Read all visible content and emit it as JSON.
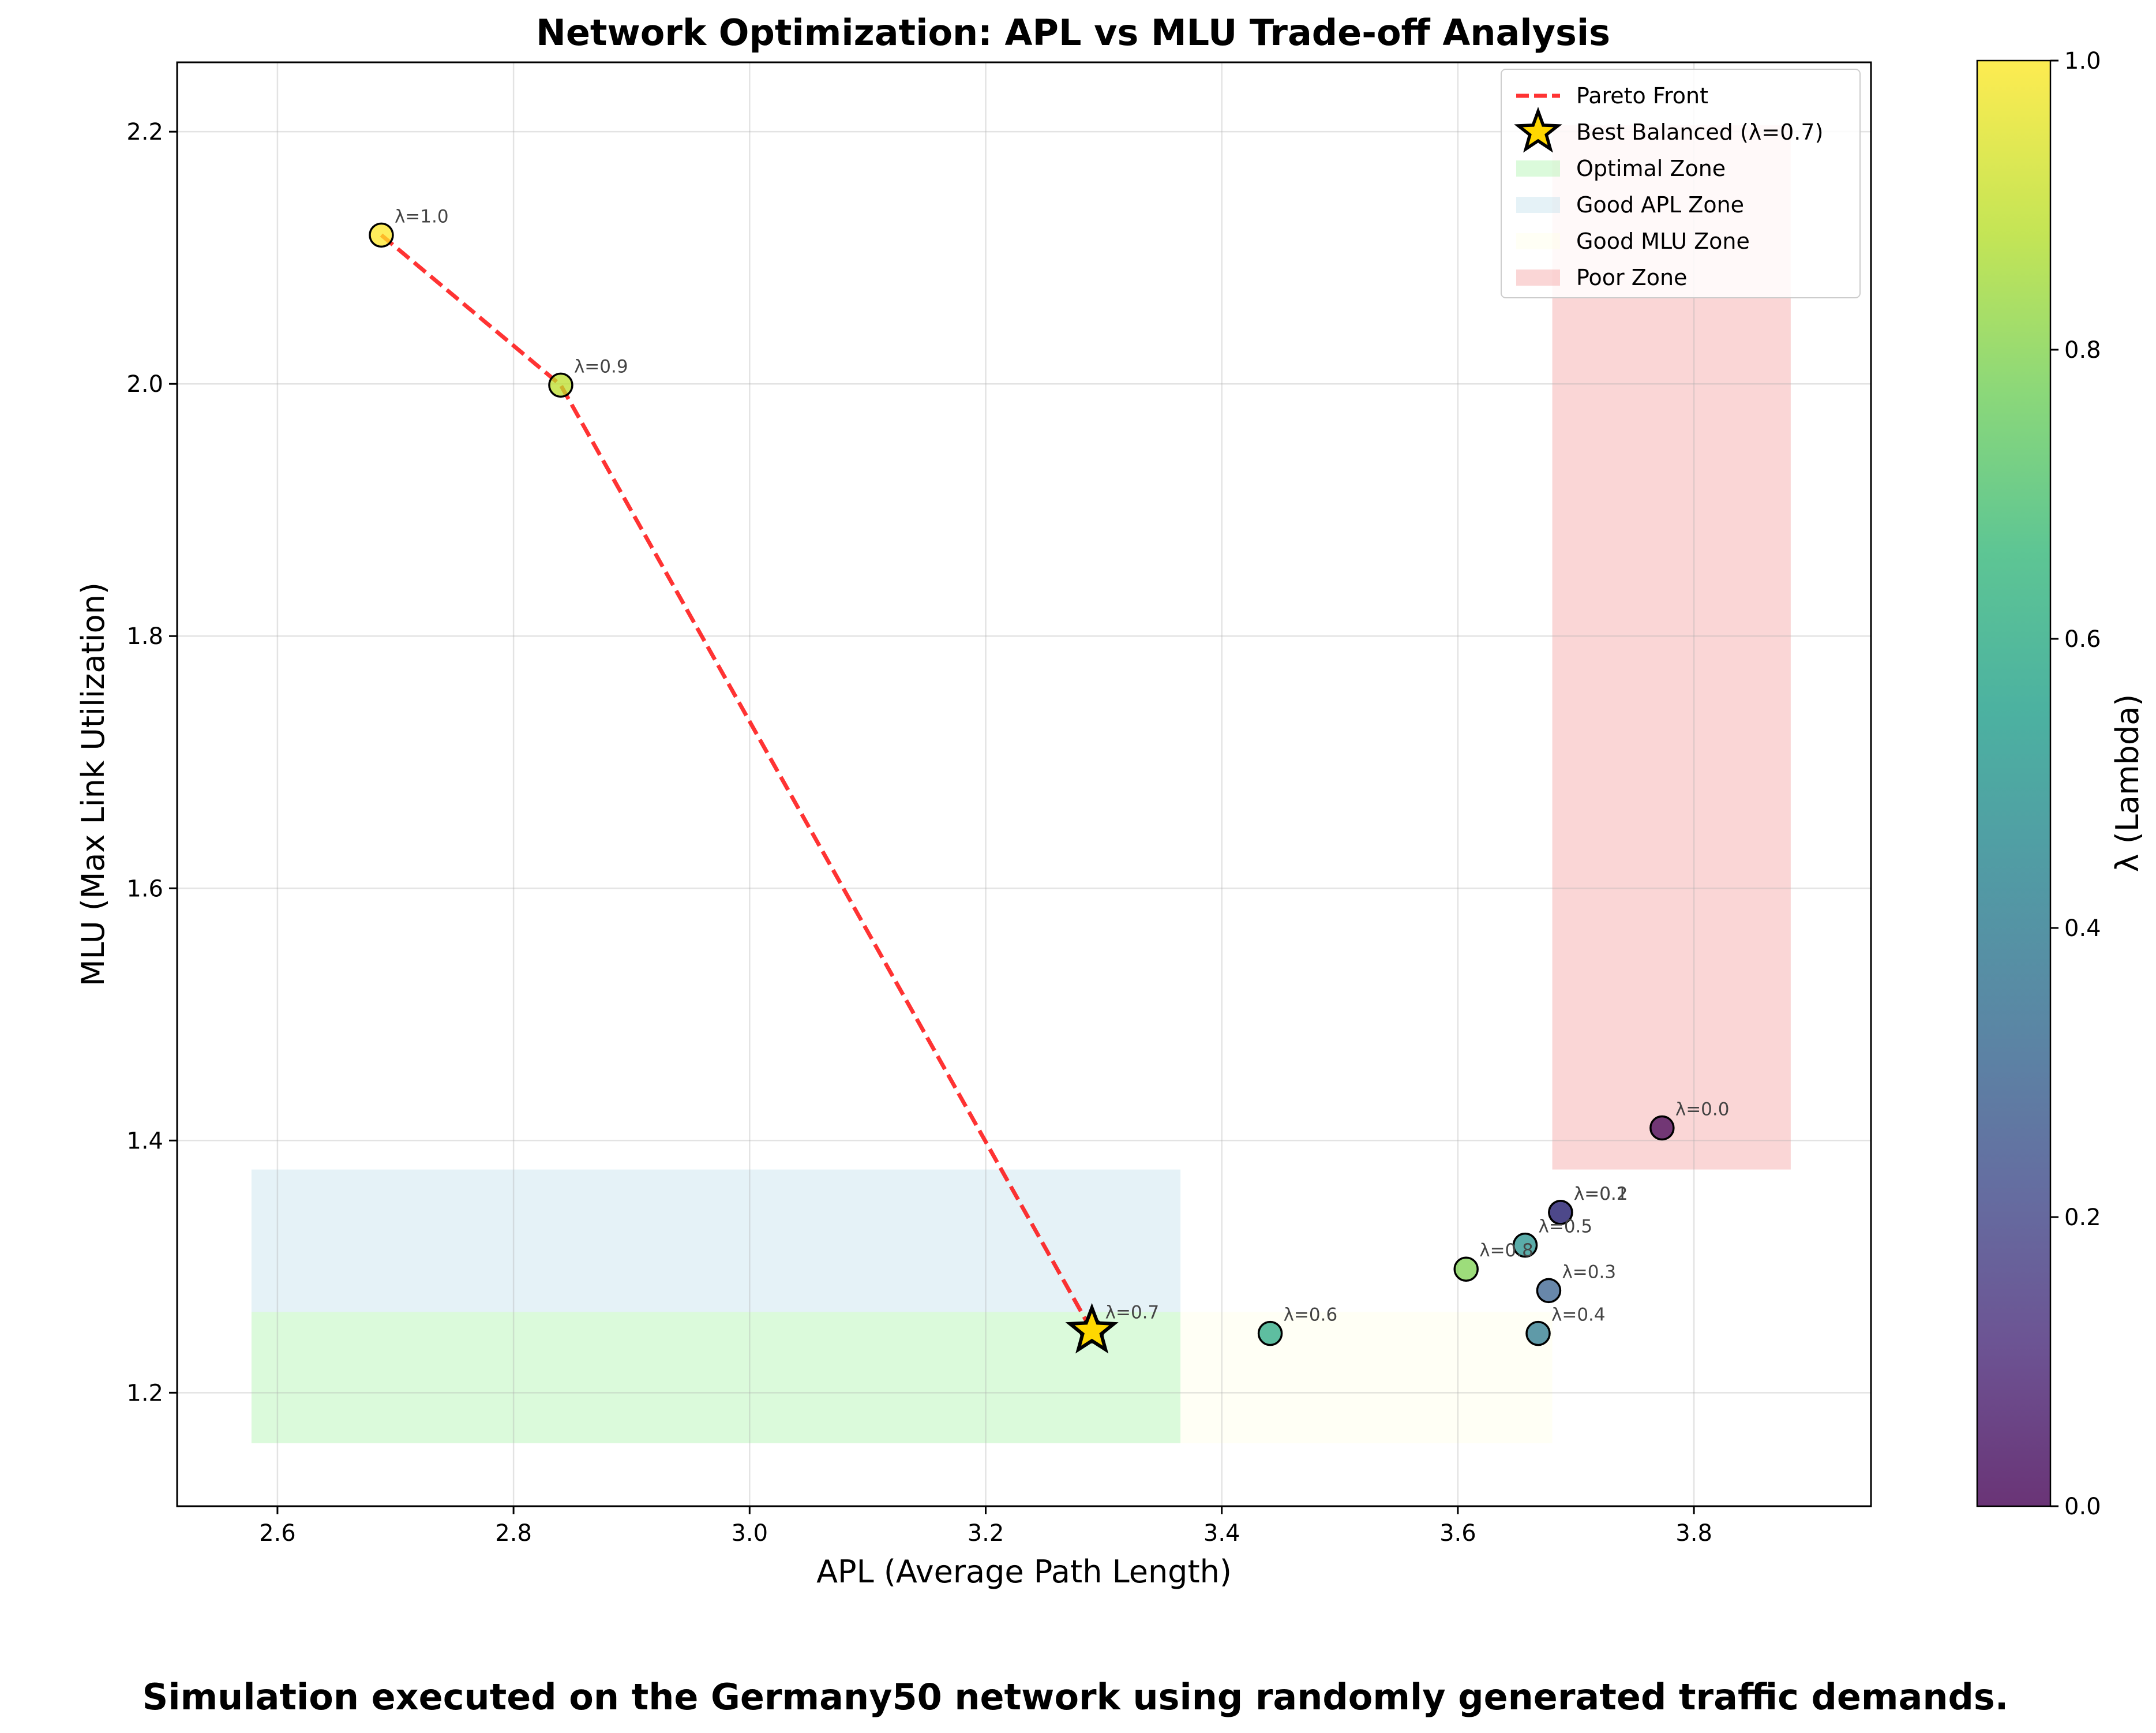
{
  "chart_data": {
    "type": "scatter",
    "title": "Network Optimization: APL vs MLU Trade-off Analysis",
    "xlabel": "APL (Average Path Length)",
    "ylabel": "MLU (Max Link Utilization)",
    "xlim": [
      2.515,
      3.95
    ],
    "ylim": [
      1.11,
      2.255
    ],
    "xticks": [
      "2.6",
      "2.8",
      "3.0",
      "3.2",
      "3.4",
      "3.6",
      "3.8"
    ],
    "yticks": [
      "1.2",
      "1.4",
      "1.6",
      "1.8",
      "2.0",
      "2.2"
    ],
    "grid": true,
    "points": [
      {
        "lambda": 0.0,
        "apl": 3.773,
        "mlu": 1.41,
        "label": "λ=0.0"
      },
      {
        "lambda": 0.1,
        "apl": 3.687,
        "mlu": 1.343,
        "label": "λ=0.1"
      },
      {
        "lambda": 0.2,
        "apl": 3.687,
        "mlu": 1.343,
        "label": "λ=0.2"
      },
      {
        "lambda": 0.3,
        "apl": 3.677,
        "mlu": 1.281,
        "label": "λ=0.3"
      },
      {
        "lambda": 0.4,
        "apl": 3.668,
        "mlu": 1.247,
        "label": "λ=0.4"
      },
      {
        "lambda": 0.5,
        "apl": 3.657,
        "mlu": 1.317,
        "label": "λ=0.5"
      },
      {
        "lambda": 0.6,
        "apl": 3.441,
        "mlu": 1.247,
        "label": "λ=0.6"
      },
      {
        "lambda": 0.7,
        "apl": 3.29,
        "mlu": 1.249,
        "label": "λ=0.7"
      },
      {
        "lambda": 0.8,
        "apl": 3.607,
        "mlu": 1.298,
        "label": "λ=0.8"
      },
      {
        "lambda": 0.9,
        "apl": 2.84,
        "mlu": 1.999,
        "label": "λ=0.9"
      },
      {
        "lambda": 1.0,
        "apl": 2.688,
        "mlu": 2.118,
        "label": "λ=1.0"
      }
    ],
    "pareto_front": [
      {
        "apl": 2.688,
        "mlu": 2.118
      },
      {
        "apl": 2.84,
        "mlu": 1.999
      },
      {
        "apl": 3.29,
        "mlu": 1.249
      }
    ],
    "best_balanced": {
      "apl": 3.29,
      "mlu": 1.249,
      "lambda": 0.7
    },
    "zones": [
      {
        "name": "Optimal Zone",
        "x": [
          2.578,
          3.365
        ],
        "y": [
          1.16,
          1.264
        ],
        "color": "#90ee90",
        "alpha": 0.32
      },
      {
        "name": "Good APL Zone",
        "x": [
          2.578,
          3.365
        ],
        "y": [
          1.264,
          1.377
        ],
        "color": "#add8e6",
        "alpha": 0.32
      },
      {
        "name": "Good MLU Zone",
        "x": [
          3.365,
          3.68
        ],
        "y": [
          1.16,
          1.264
        ],
        "color": "#ffffe0",
        "alpha": 0.32
      },
      {
        "name": "Poor Zone",
        "x": [
          3.68,
          3.882
        ],
        "y": [
          1.377,
          2.205
        ],
        "color": "#f08080",
        "alpha": 0.32
      }
    ],
    "legend": {
      "placement": "top-right",
      "entries": [
        {
          "label": "Pareto Front",
          "kind": "dashed-line",
          "color": "#ff0000"
        },
        {
          "label": "Best Balanced (λ=0.7)",
          "kind": "star",
          "color": "#ffd700"
        },
        {
          "label": "Optimal Zone",
          "kind": "patch",
          "color": "#90ee90"
        },
        {
          "label": "Good APL Zone",
          "kind": "patch",
          "color": "#add8e6"
        },
        {
          "label": "Good MLU Zone",
          "kind": "patch",
          "color": "#ffffe0"
        },
        {
          "label": "Poor Zone",
          "kind": "patch",
          "color": "#f08080"
        }
      ]
    },
    "colorbar": {
      "label": "λ (Lambda)",
      "colormap": "viridis",
      "range": [
        0.0,
        1.0
      ],
      "ticks": [
        "0.0",
        "0.2",
        "0.4",
        "0.6",
        "0.8",
        "1.0"
      ]
    }
  },
  "caption": "Simulation executed on the Germany50 network using randomly generated traffic demands."
}
